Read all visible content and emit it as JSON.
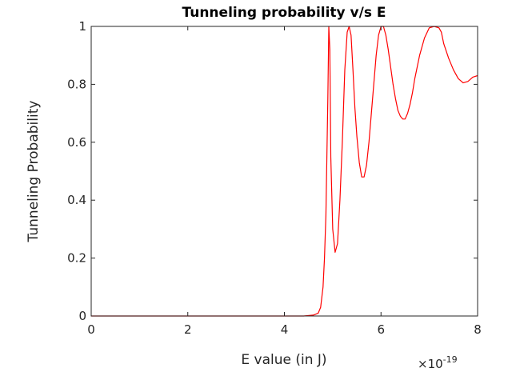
{
  "chart_data": {
    "type": "line",
    "title": "Tunneling probability v/s E",
    "xlabel": "E value (in J)",
    "ylabel": "Tunneling Probability",
    "x_exponent_base": "×10",
    "x_exponent_power": "-19",
    "xlim": [
      0,
      8
    ],
    "ylim": [
      0,
      1
    ],
    "x_ticks": [
      0,
      2,
      4,
      6,
      8
    ],
    "x_tick_labels": [
      "0",
      "2",
      "4",
      "6",
      "8"
    ],
    "y_ticks": [
      0,
      0.2,
      0.4,
      0.6,
      0.8,
      1
    ],
    "y_tick_labels": [
      "0",
      "0.2",
      "0.4",
      "0.6",
      "0.8",
      "1"
    ],
    "grid": false,
    "line_color": "#ff0000",
    "series": [
      {
        "x": [
          0,
          1,
          2,
          3,
          3.6,
          4.0,
          4.4,
          4.6,
          4.7,
          4.75,
          4.8,
          4.83,
          4.86,
          4.88,
          4.9,
          4.92,
          4.94,
          4.96,
          5.0,
          5.05,
          5.1,
          5.15,
          5.2,
          5.25,
          5.3,
          5.34,
          5.38,
          5.42,
          5.46,
          5.5,
          5.55,
          5.6,
          5.65,
          5.7,
          5.75,
          5.8,
          5.85,
          5.9,
          5.95,
          6.0,
          6.05,
          6.1,
          6.15,
          6.2,
          6.25,
          6.3,
          6.35,
          6.4,
          6.45,
          6.5,
          6.55,
          6.6,
          6.65,
          6.7,
          6.8,
          6.9,
          7.0,
          7.1,
          7.2,
          7.25,
          7.3,
          7.4,
          7.5,
          7.6,
          7.7,
          7.8,
          7.9,
          8.0
        ],
        "y": [
          0,
          0,
          0,
          0,
          0,
          0,
          0,
          0.003,
          0.01,
          0.03,
          0.1,
          0.2,
          0.35,
          0.55,
          0.75,
          1.0,
          0.92,
          0.55,
          0.3,
          0.22,
          0.25,
          0.4,
          0.6,
          0.85,
          0.98,
          1.0,
          0.97,
          0.85,
          0.72,
          0.62,
          0.53,
          0.48,
          0.48,
          0.52,
          0.6,
          0.7,
          0.8,
          0.9,
          0.97,
          1.0,
          1.0,
          0.97,
          0.92,
          0.86,
          0.8,
          0.75,
          0.71,
          0.69,
          0.68,
          0.68,
          0.7,
          0.73,
          0.77,
          0.82,
          0.9,
          0.96,
          0.995,
          1.0,
          0.995,
          0.98,
          0.94,
          0.89,
          0.85,
          0.82,
          0.805,
          0.81,
          0.825,
          0.83
        ]
      }
    ]
  }
}
